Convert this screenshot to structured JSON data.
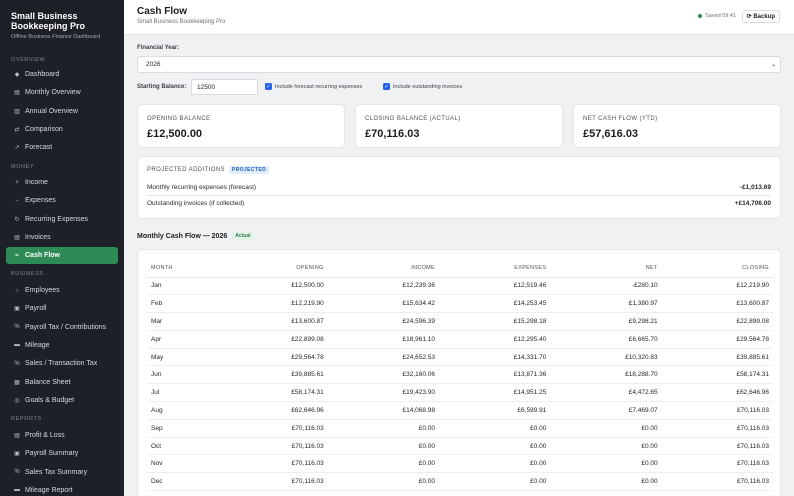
{
  "brand": {
    "title": "Small Business Bookkeeping Pro",
    "subtitle": "Offline Business Finance Dashboard"
  },
  "sidebar": {
    "sections": [
      {
        "label": "OVERVIEW",
        "items": [
          {
            "label": "Dashboard",
            "icon": "◆"
          },
          {
            "label": "Monthly Overview",
            "icon": "▤"
          },
          {
            "label": "Annual Overview",
            "icon": "▥"
          },
          {
            "label": "Comparison",
            "icon": "⇄"
          },
          {
            "label": "Forecast",
            "icon": "↗"
          }
        ]
      },
      {
        "label": "MONEY",
        "items": [
          {
            "label": "Income",
            "icon": "+"
          },
          {
            "label": "Expenses",
            "icon": "−"
          },
          {
            "label": "Recurring Expenses",
            "icon": "↻"
          },
          {
            "label": "Invoices",
            "icon": "▤"
          },
          {
            "label": "Cash Flow",
            "icon": "≈",
            "active": true
          }
        ]
      },
      {
        "label": "BUSINESS",
        "items": [
          {
            "label": "Employees",
            "icon": "○"
          },
          {
            "label": "Payroll",
            "icon": "▣"
          },
          {
            "label": "Payroll Tax / Contributions",
            "icon": "%"
          },
          {
            "label": "Mileage",
            "icon": "▬"
          },
          {
            "label": "Sales / Transaction Tax",
            "icon": "%"
          },
          {
            "label": "Balance Sheet",
            "icon": "▦"
          },
          {
            "label": "Goals & Budget",
            "icon": "◎"
          }
        ]
      },
      {
        "label": "REPORTS",
        "items": [
          {
            "label": "Profit & Loss",
            "icon": "▤"
          },
          {
            "label": "Payroll Summary",
            "icon": "▣"
          },
          {
            "label": "Sales Tax Summary",
            "icon": "%"
          },
          {
            "label": "Mileage Report",
            "icon": "▬"
          }
        ]
      }
    ]
  },
  "header": {
    "title": "Cash Flow",
    "subtitle": "Small Business Bookkeeping Pro",
    "saved": "Saved 09:41",
    "backup": "⟳ Backup"
  },
  "controls": {
    "financial_year_label": "Financial Year:",
    "financial_year_value": "2026",
    "starting_balance_label": "Starting Balance:",
    "starting_balance_value": "12500",
    "forecast_label": "Include forecast recurring expenses",
    "invoices_label": "Include outstanding invoices"
  },
  "stats": {
    "opening_label": "OPENING BALANCE",
    "opening_value": "£12,500.00",
    "closing_label": "CLOSING BALANCE (ACTUAL)",
    "closing_value": "£70,116.03",
    "net_label": "NET CASH FLOW (YTD)",
    "net_value": "£57,616.03"
  },
  "projected": {
    "title": "PROJECTED ADDITIONS",
    "badge": "PROJECTED",
    "rows": [
      {
        "label": "Monthly recurring expenses (forecast)",
        "amount": "-£1,013.69"
      },
      {
        "label": "Outstanding invoices (if collected)",
        "amount": "+£14,706.00"
      }
    ]
  },
  "monthly": {
    "title": "Monthly Cash Flow — 2026",
    "badge": "Actual",
    "columns": [
      "MONTH",
      "OPENING",
      "INCOME",
      "EXPENSES",
      "NET",
      "CLOSING"
    ],
    "rows": [
      [
        "Jan",
        "£12,500.00",
        "£12,239.36",
        "£12,519.46",
        "-£280.10",
        "£12,219.90"
      ],
      [
        "Feb",
        "£12,219.90",
        "£15,634.42",
        "£14,253.45",
        "£1,380.97",
        "£13,600.87"
      ],
      [
        "Mar",
        "£13,600.87",
        "£24,596.39",
        "£15,298.18",
        "£9,298.21",
        "£22,899.08"
      ],
      [
        "Apr",
        "£22,899.08",
        "£18,961.10",
        "£12,295.40",
        "£6,665.70",
        "£29,564.78"
      ],
      [
        "May",
        "£29,564.78",
        "£24,652.53",
        "£14,331.70",
        "£10,320.83",
        "£39,885.61"
      ],
      [
        "Jun",
        "£39,885.61",
        "£32,160.06",
        "£13,871.36",
        "£18,288.70",
        "£58,174.31"
      ],
      [
        "Jul",
        "£58,174.31",
        "£19,423.90",
        "£14,951.25",
        "£4,472.65",
        "£62,646.96"
      ],
      [
        "Aug",
        "£62,646.96",
        "£14,068.98",
        "£6,599.91",
        "£7,469.07",
        "£70,116.03"
      ],
      [
        "Sep",
        "£70,116.03",
        "£0.00",
        "£0.00",
        "£0.00",
        "£70,116.03"
      ],
      [
        "Oct",
        "£70,116.03",
        "£0.00",
        "£0.00",
        "£0.00",
        "£70,116.03"
      ],
      [
        "Nov",
        "£70,116.03",
        "£0.00",
        "£0.00",
        "£0.00",
        "£70,116.03"
      ],
      [
        "Dec",
        "£70,116.03",
        "£0.00",
        "£0.00",
        "£0.00",
        "£70,116.03"
      ]
    ]
  }
}
